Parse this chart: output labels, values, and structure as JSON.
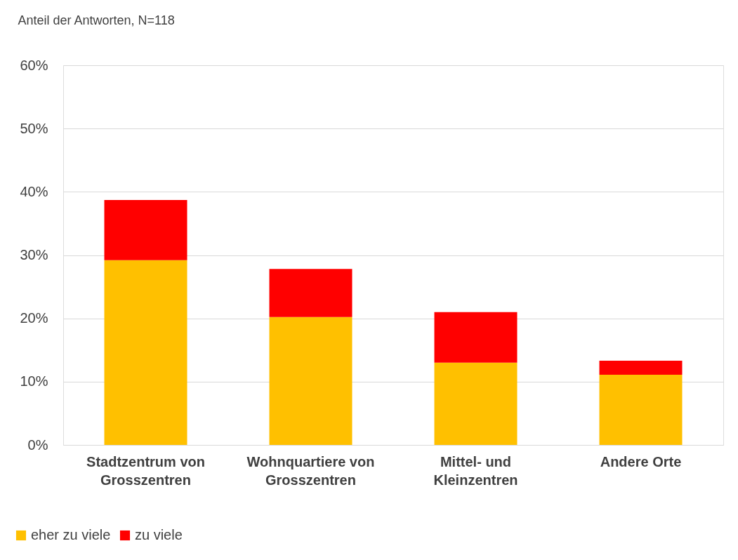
{
  "chart_data": {
    "type": "bar",
    "ylabel": "Anteil der Antworten, N=118",
    "categories": [
      "Stadtzentrum von\nGrosszentren",
      "Wohnquartiere von\nGrosszentren",
      "Mittel- und\nKleinzentren",
      "Andere Orte"
    ],
    "series": [
      {
        "name": "eher zu viele",
        "color": "#ffc000",
        "values": [
          29.2,
          20.2,
          13.0,
          11.1
        ]
      },
      {
        "name": "zu viele",
        "color": "#ff0000",
        "values": [
          9.5,
          7.6,
          8.0,
          2.2
        ]
      }
    ],
    "stacked": true,
    "ylim": [
      0,
      60
    ],
    "yticks": [
      {
        "value": 0,
        "label": "0%"
      },
      {
        "value": 10,
        "label": "10%"
      },
      {
        "value": 20,
        "label": "20%"
      },
      {
        "value": 30,
        "label": "30%"
      },
      {
        "value": 40,
        "label": "40%"
      },
      {
        "value": 50,
        "label": "50%"
      },
      {
        "value": 60,
        "label": "60%"
      }
    ],
    "grid": "y",
    "legend": "bottom left"
  }
}
